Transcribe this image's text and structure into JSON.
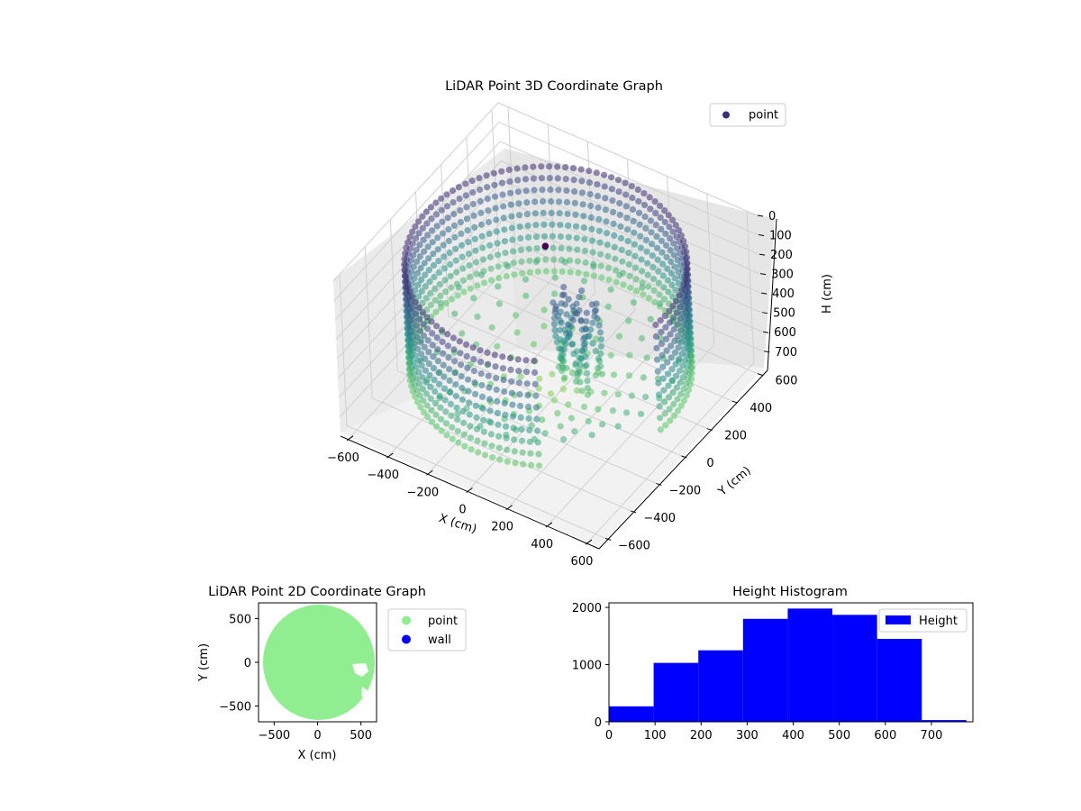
{
  "chart_data": [
    {
      "type": "scatter",
      "projection": "3d",
      "title": "LiDAR Point 3D Coordinate Graph",
      "xlabel": "X (cm)",
      "ylabel": "Y (cm)",
      "zlabel": "H (cm)",
      "xticks": [
        "−600",
        "−400",
        "−200",
        "0",
        "200",
        "400",
        "600"
      ],
      "yticks": [
        "600",
        "400",
        "200",
        "0",
        "−200",
        "−400",
        "−600"
      ],
      "zticks": [
        "0",
        "100",
        "200",
        "300",
        "400",
        "500",
        "600",
        "700"
      ],
      "xlim": [
        -650,
        650
      ],
      "ylim": [
        -650,
        650
      ],
      "zlim": [
        0,
        780
      ],
      "z_axis_inverted": true,
      "legend": {
        "entries": [
          "point"
        ],
        "placement": "top-right"
      },
      "colormap": "viridis",
      "description_shape": "cylindrical wall of radius ~600 around origin, floor points near max height, cluster of object points near x 150-250, y -50-50",
      "wall_radius": 600,
      "grid": true
    },
    {
      "type": "scatter",
      "title": "LiDAR Point 2D Coordinate Graph",
      "xlabel": "X (cm)",
      "ylabel": "Y (cm)",
      "xticks": [
        "−500",
        "0",
        "500"
      ],
      "yticks": [
        "500",
        "0",
        "−500"
      ],
      "xlim": [
        -680,
        680
      ],
      "ylim": [
        -680,
        680
      ],
      "legend": {
        "entries": [
          "point",
          "wall"
        ],
        "placement": "outside-right"
      },
      "series": [
        {
          "name": "point",
          "color": "#90ee90",
          "region": "disk",
          "radius": 630
        },
        {
          "name": "wall",
          "color": "#0000ff"
        }
      ]
    },
    {
      "type": "bar",
      "subtype": "histogram",
      "title": "Height Histogram",
      "xticks": [
        "0",
        "100",
        "200",
        "300",
        "400",
        "500",
        "600",
        "700"
      ],
      "yticks": [
        "0",
        "1000",
        "2000"
      ],
      "xlim": [
        0,
        790
      ],
      "ylim": [
        0,
        2080
      ],
      "legend": {
        "entries": [
          "Height"
        ],
        "placement": "top-right"
      },
      "color": "#0000ff",
      "bins": [
        {
          "x0": 0,
          "x1": 97,
          "value": 270
        },
        {
          "x0": 97,
          "x1": 194,
          "value": 1030
        },
        {
          "x0": 194,
          "x1": 291,
          "value": 1250
        },
        {
          "x0": 291,
          "x1": 388,
          "value": 1800
        },
        {
          "x0": 388,
          "x1": 485,
          "value": 1980
        },
        {
          "x0": 485,
          "x1": 582,
          "value": 1870
        },
        {
          "x0": 582,
          "x1": 679,
          "value": 1450
        },
        {
          "x0": 679,
          "x1": 776,
          "value": 30
        }
      ]
    }
  ]
}
